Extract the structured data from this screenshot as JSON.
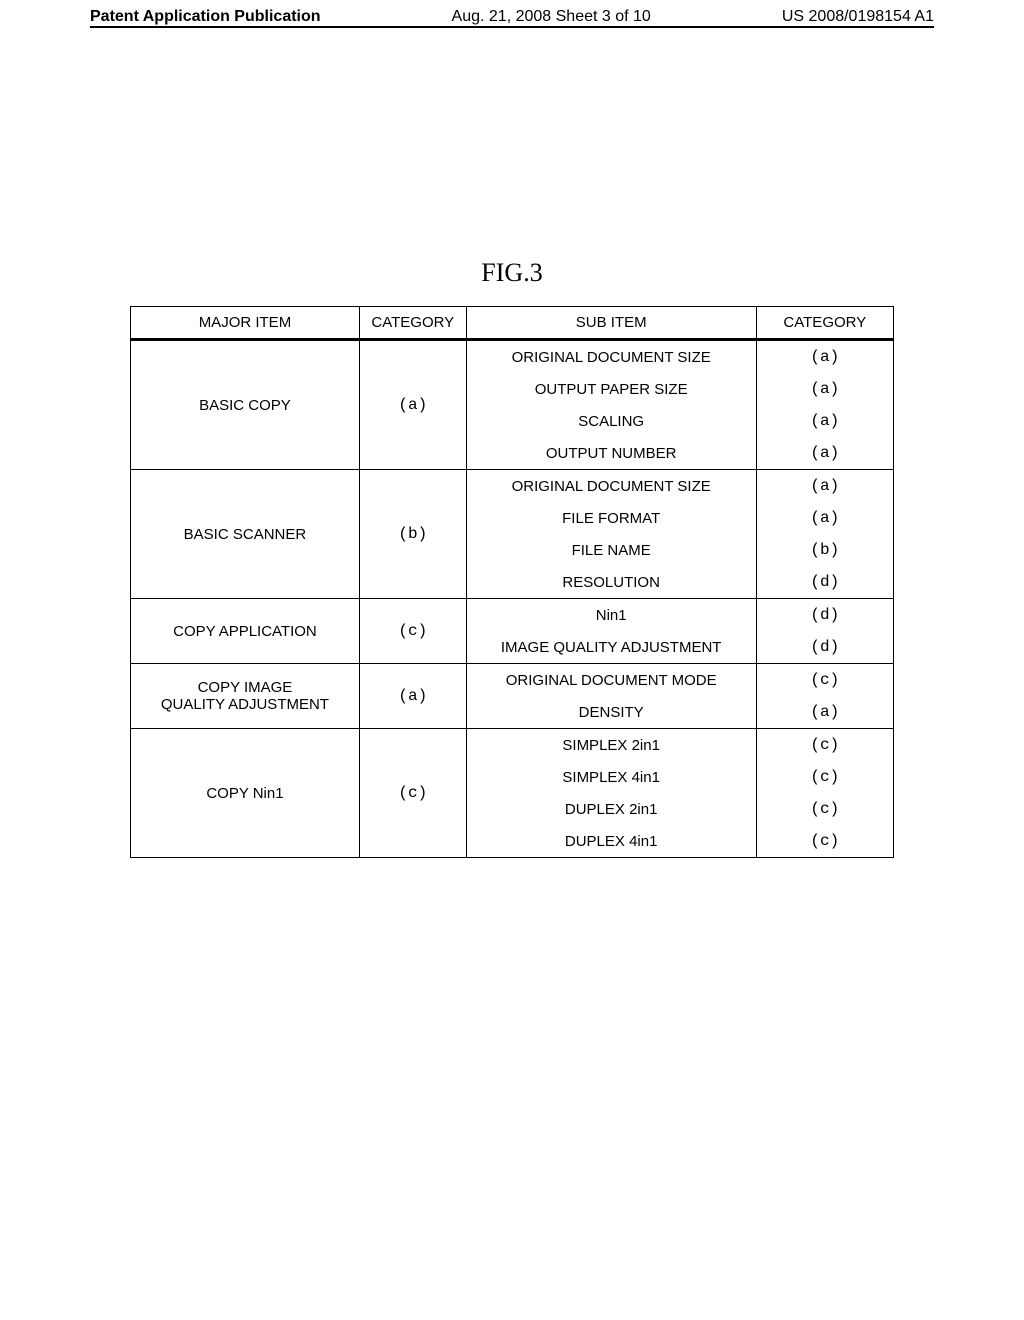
{
  "header": {
    "left": "Patent Application Publication",
    "center": "Aug. 21, 2008  Sheet 3 of 10",
    "right": "US 2008/0198154 A1"
  },
  "figure": {
    "label": "FIG.3"
  },
  "table": {
    "columns": [
      "MAJOR ITEM",
      "CATEGORY",
      "SUB ITEM",
      "CATEGORY"
    ],
    "groups": [
      {
        "major": "BASIC COPY",
        "category": "(a)",
        "rows": [
          {
            "sub": "ORIGINAL DOCUMENT SIZE",
            "cat": "(a)"
          },
          {
            "sub": "OUTPUT PAPER SIZE",
            "cat": "(a)"
          },
          {
            "sub": "SCALING",
            "cat": "(a)"
          },
          {
            "sub": "OUTPUT NUMBER",
            "cat": "(a)"
          }
        ]
      },
      {
        "major": "BASIC SCANNER",
        "category": "(b)",
        "rows": [
          {
            "sub": "ORIGINAL DOCUMENT SIZE",
            "cat": "(a)"
          },
          {
            "sub": "FILE FORMAT",
            "cat": "(a)"
          },
          {
            "sub": "FILE NAME",
            "cat": "(b)"
          },
          {
            "sub": "RESOLUTION",
            "cat": "(d)"
          }
        ]
      },
      {
        "major": "COPY APPLICATION",
        "category": "(c)",
        "rows": [
          {
            "sub": "Nin1",
            "cat": "(d)"
          },
          {
            "sub": "IMAGE QUALITY ADJUSTMENT",
            "cat": "(d)"
          }
        ]
      },
      {
        "major": "COPY IMAGE\nQUALITY ADJUSTMENT",
        "category": "(a)",
        "rows": [
          {
            "sub": "ORIGINAL DOCUMENT MODE",
            "cat": "(c)"
          },
          {
            "sub": "DENSITY",
            "cat": "(a)"
          }
        ]
      },
      {
        "major": "COPY Nin1",
        "category": "(c)",
        "rows": [
          {
            "sub": "SIMPLEX 2in1",
            "cat": "(c)"
          },
          {
            "sub": "SIMPLEX 4in1",
            "cat": "(c)"
          },
          {
            "sub": "DUPLEX 2in1",
            "cat": "(c)"
          },
          {
            "sub": "DUPLEX 4in1",
            "cat": "(c)"
          }
        ]
      }
    ]
  }
}
